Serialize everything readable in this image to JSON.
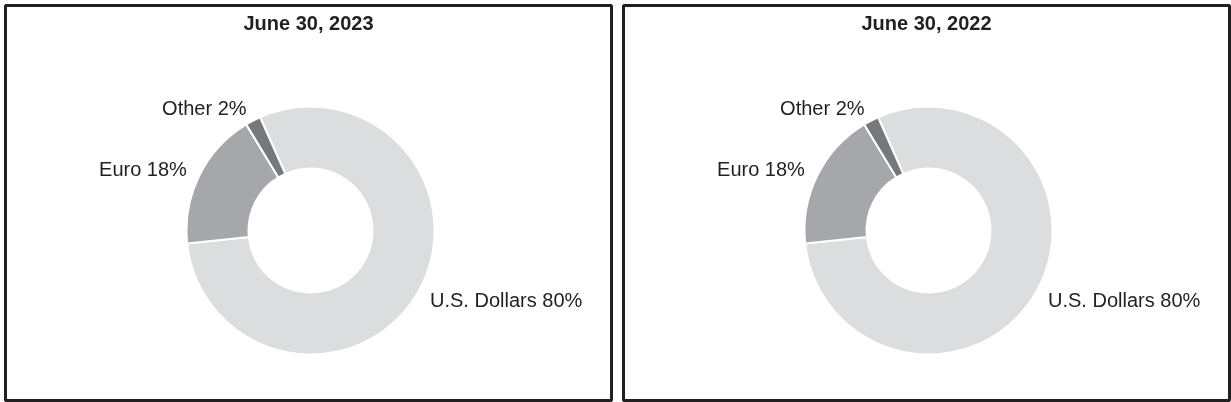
{
  "chart_data": [
    {
      "type": "donut",
      "title": "June 30, 2023",
      "categories": [
        "U.S. Dollars",
        "Euro",
        "Other"
      ],
      "values": [
        80,
        18,
        2
      ],
      "value_labels": [
        "80%",
        "18%",
        "2%"
      ],
      "colors": [
        "#dcdddf",
        "#a6a7aa",
        "#77787b"
      ]
    },
    {
      "type": "donut",
      "title": "June 30, 2022",
      "categories": [
        "U.S. Dollars",
        "Euro",
        "Other"
      ],
      "values": [
        80,
        18,
        2
      ],
      "value_labels": [
        "80%",
        "18%",
        "2%"
      ],
      "colors": [
        "#dcdddf",
        "#a6a7aa",
        "#77787b"
      ]
    }
  ]
}
